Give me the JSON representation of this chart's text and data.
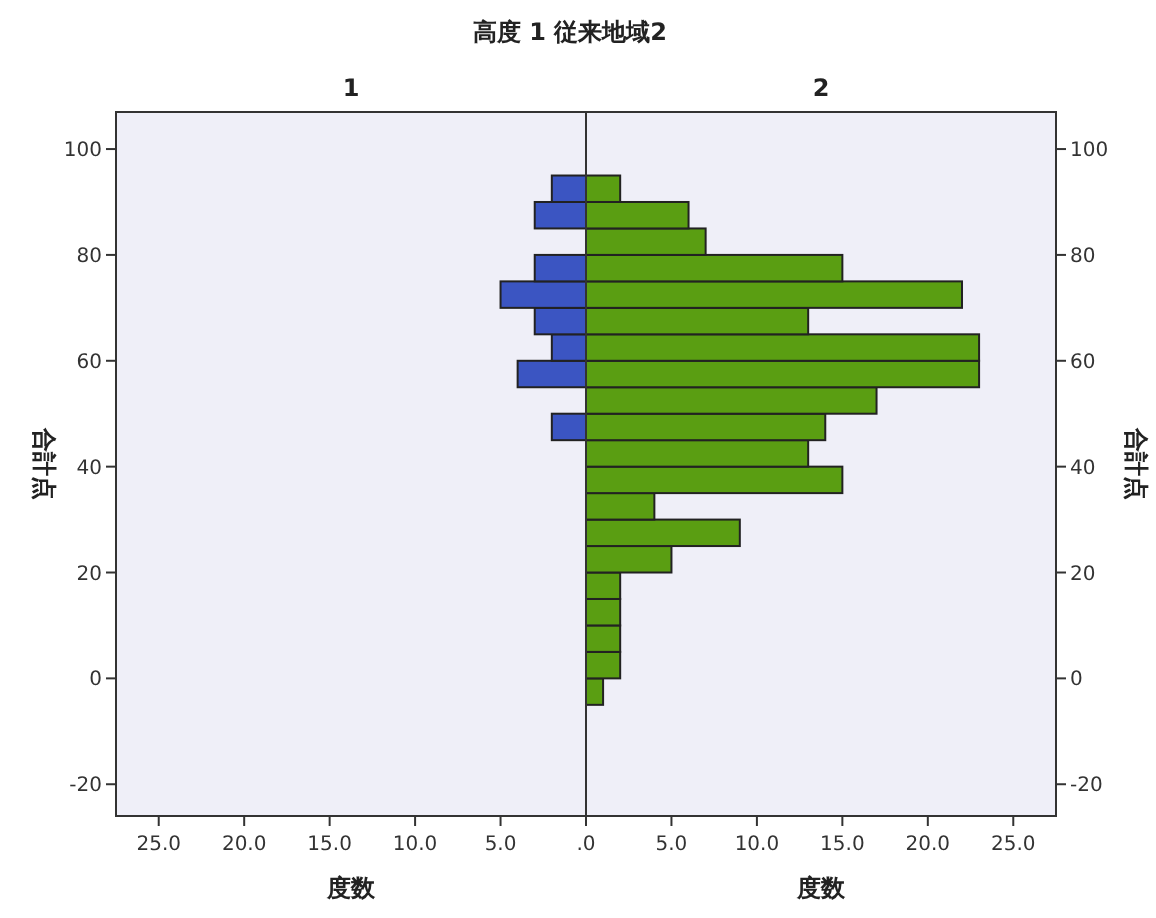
{
  "chart_data": [
    {
      "type": "histogram",
      "orientation": "horizontal",
      "title": "高度 1 従来地域2",
      "subtitle": "1",
      "xlabel": "度数",
      "ylabel": "合計点",
      "color": "#3b55c2",
      "bins": [
        -5,
        0,
        5,
        10,
        15,
        20,
        25,
        30,
        35,
        40,
        45,
        50,
        55,
        60,
        65,
        70,
        75,
        80,
        85,
        90,
        95
      ],
      "values": [
        0,
        0,
        0,
        0,
        0,
        0,
        0,
        0,
        0,
        0,
        2,
        0,
        4,
        2,
        3,
        5,
        3,
        0,
        3,
        2
      ],
      "xlim": [
        27.5,
        0
      ],
      "xticks": [
        {
          "value": 25,
          "label": "25.0"
        },
        {
          "value": 20,
          "label": "20.0"
        },
        {
          "value": 15,
          "label": "15.0"
        },
        {
          "value": 10,
          "label": "10.0"
        },
        {
          "value": 5,
          "label": "5.0"
        },
        {
          "value": 0,
          "label": null
        }
      ],
      "ylim": [
        -26,
        107
      ],
      "yticks": [
        -20,
        0,
        20,
        40,
        60,
        80,
        100
      ],
      "grid": false
    },
    {
      "type": "histogram",
      "orientation": "horizontal",
      "subtitle": "2",
      "xlabel": "度数",
      "ylabel": "合計点",
      "color": "#5a9e12",
      "bins": [
        -5,
        0,
        5,
        10,
        15,
        20,
        25,
        30,
        35,
        40,
        45,
        50,
        55,
        60,
        65,
        70,
        75,
        80,
        85,
        90,
        95
      ],
      "values": [
        1,
        2,
        2,
        2,
        2,
        5,
        9,
        4,
        15,
        13,
        14,
        17,
        23,
        23,
        13,
        22,
        15,
        7,
        6,
        2
      ],
      "xlim": [
        0,
        27.5
      ],
      "xticks": [
        {
          "value": 0,
          "label": ".0"
        },
        {
          "value": 5,
          "label": "5.0"
        },
        {
          "value": 10,
          "label": "10.0"
        },
        {
          "value": 15,
          "label": "15.0"
        },
        {
          "value": 20,
          "label": "20.0"
        },
        {
          "value": 25,
          "label": "25.0"
        }
      ],
      "ylim": [
        -26,
        107
      ],
      "yticks": [
        -20,
        0,
        20,
        40,
        60,
        80,
        100
      ],
      "grid": false
    }
  ]
}
